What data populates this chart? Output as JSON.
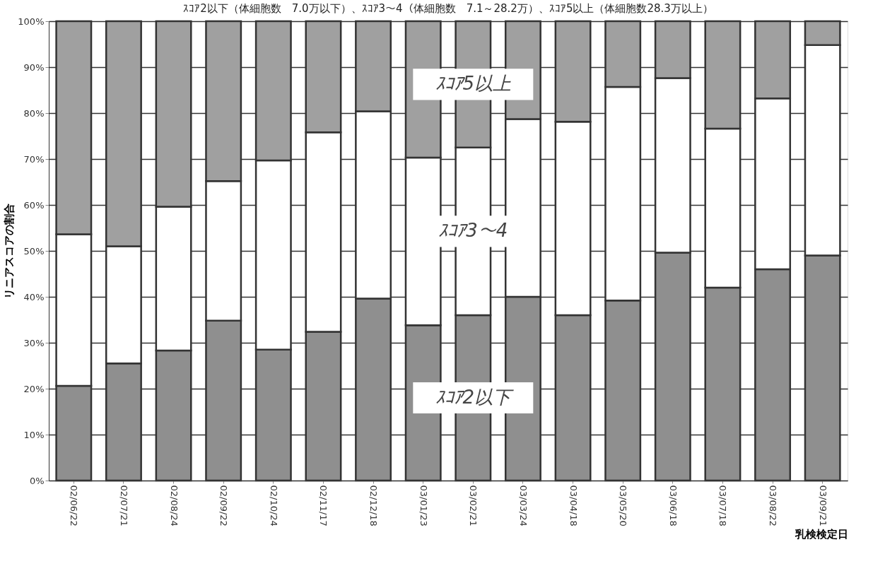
{
  "chart_data": {
    "type": "bar",
    "stacked": true,
    "title": "ｽｺｱ2以下（体細胞数　7.0万以下）、ｽｺｱ3～4（体細胞数　7.1～28.2万）、ｽｺｱ5以上（体細胞数28.3万以上）",
    "xlabel": "乳検検定日",
    "ylabel": "リニアスコアの割合",
    "categories": [
      "02/06/22",
      "02/07/21",
      "02/08/24",
      "02/09/22",
      "02/10/24",
      "02/11/17",
      "02/12/18",
      "03/01/23",
      "03/02/21",
      "03/03/24",
      "03/04/18",
      "03/05/20",
      "03/06/18",
      "03/07/18",
      "03/08/22",
      "03/09/21"
    ],
    "series": [
      {
        "name": "ｽｺｱ2以下",
        "color": "#8f8f8f",
        "values": [
          20.6,
          25.5,
          28.3,
          34.8,
          28.5,
          32.4,
          39.6,
          33.8,
          36.0,
          40.0,
          36.0,
          39.2,
          49.6,
          42.0,
          46.0,
          49.0
        ]
      },
      {
        "name": "ｽｺｱ3～4",
        "color": "#ffffff",
        "values": [
          33.0,
          25.5,
          31.3,
          30.4,
          41.2,
          43.4,
          40.8,
          36.5,
          36.5,
          38.7,
          42.1,
          46.5,
          38.0,
          34.6,
          37.2,
          45.8
        ]
      },
      {
        "name": "ｽｺｱ5以上",
        "color": "#a0a0a0",
        "values": [
          46.4,
          49.0,
          40.4,
          34.8,
          30.3,
          24.2,
          19.6,
          29.7,
          27.5,
          21.3,
          21.9,
          14.3,
          12.4,
          23.4,
          16.8,
          5.2
        ]
      }
    ],
    "ylim": [
      0,
      100
    ],
    "yticks": [
      {
        "value": 0,
        "label": "0%"
      },
      {
        "value": 10,
        "label": "10%"
      },
      {
        "value": 20,
        "label": "20%"
      },
      {
        "value": 30,
        "label": "30%"
      },
      {
        "value": 40,
        "label": "40%"
      },
      {
        "value": 50,
        "label": "50%"
      },
      {
        "value": 60,
        "label": "60%"
      },
      {
        "value": 70,
        "label": "70%"
      },
      {
        "value": 80,
        "label": "80%"
      },
      {
        "value": 90,
        "label": "90%"
      },
      {
        "value": 100,
        "label": "100%"
      }
    ],
    "grid": "y"
  }
}
